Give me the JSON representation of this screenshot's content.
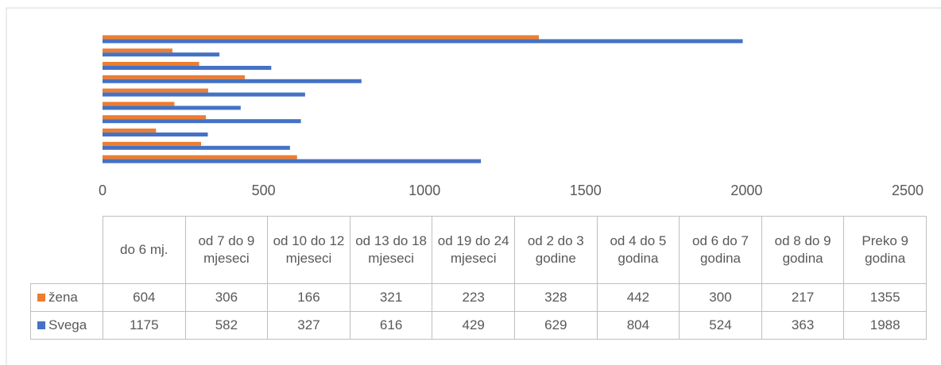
{
  "chart_data": {
    "type": "bar",
    "orientation": "horizontal",
    "categories": [
      "do 6 mj.",
      "od 7 do 9 mjeseci",
      "od 10 do 12 mjeseci",
      "od 13 do 18 mjeseci",
      "od 19 do 24 mjeseci",
      "od 2 do 3 godine",
      "od 4 do 5 godina",
      "od 6 do 7 godina",
      "od 8 do 9 godina",
      "Preko 9 godina"
    ],
    "series": [
      {
        "name": "žena",
        "color": "#ed7d31",
        "values": [
          604,
          306,
          166,
          321,
          223,
          328,
          442,
          300,
          217,
          1355
        ]
      },
      {
        "name": "Svega",
        "color": "#4472c4",
        "values": [
          1175,
          582,
          327,
          616,
          429,
          629,
          804,
          524,
          363,
          1988
        ]
      }
    ],
    "xlim": [
      0,
      2500
    ],
    "xticks": [
      0,
      500,
      1000,
      1500,
      2000,
      2500
    ],
    "grid": false,
    "legend": "data-table"
  }
}
